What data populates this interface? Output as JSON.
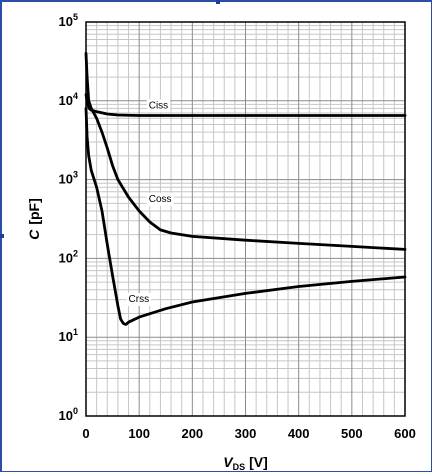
{
  "chart_data": {
    "type": "line",
    "xlabel_main": "V",
    "xlabel_sub": "DS",
    "xlabel_unit": "[V]",
    "ylabel_main": "C",
    "ylabel_unit": "[pF]",
    "x_scale": "linear",
    "y_scale": "log",
    "xlim": [
      0,
      600
    ],
    "ylim": [
      1,
      100000
    ],
    "grid": true,
    "x_ticks": [
      {
        "value": 0,
        "label": "0"
      },
      {
        "value": 100,
        "label": "100"
      },
      {
        "value": 200,
        "label": "200"
      },
      {
        "value": 300,
        "label": "300"
      },
      {
        "value": 400,
        "label": "400"
      },
      {
        "value": 500,
        "label": "500"
      },
      {
        "value": 600,
        "label": "600"
      }
    ],
    "y_ticks": [
      {
        "value": 1,
        "base": "10",
        "exp": "0"
      },
      {
        "value": 10,
        "base": "10",
        "exp": "1"
      },
      {
        "value": 100,
        "base": "10",
        "exp": "2"
      },
      {
        "value": 1000,
        "base": "10",
        "exp": "3"
      },
      {
        "value": 10000,
        "base": "10",
        "exp": "4"
      },
      {
        "value": 100000,
        "base": "10",
        "exp": "5"
      }
    ],
    "series": [
      {
        "name": "Ciss",
        "label_at": [
          118,
          8000
        ],
        "points": [
          [
            0,
            12000
          ],
          [
            3,
            9000
          ],
          [
            6,
            8000
          ],
          [
            10,
            7600
          ],
          [
            20,
            7300
          ],
          [
            40,
            6800
          ],
          [
            60,
            6600
          ],
          [
            100,
            6500
          ],
          [
            200,
            6500
          ],
          [
            300,
            6500
          ],
          [
            400,
            6500
          ],
          [
            500,
            6500
          ],
          [
            600,
            6500
          ]
        ]
      },
      {
        "name": "Coss",
        "label_at": [
          118,
          520
        ],
        "points": [
          [
            0,
            40000
          ],
          [
            2,
            20000
          ],
          [
            5,
            10000
          ],
          [
            10,
            8000
          ],
          [
            20,
            6000
          ],
          [
            30,
            4000
          ],
          [
            40,
            2500
          ],
          [
            50,
            1500
          ],
          [
            60,
            1000
          ],
          [
            80,
            600
          ],
          [
            100,
            400
          ],
          [
            120,
            290
          ],
          [
            140,
            230
          ],
          [
            160,
            210
          ],
          [
            200,
            190
          ],
          [
            300,
            170
          ],
          [
            400,
            155
          ],
          [
            500,
            142
          ],
          [
            600,
            130
          ]
        ]
      },
      {
        "name": "Crss",
        "label_at": [
          80,
          28
        ],
        "points": [
          [
            0,
            8000
          ],
          [
            2,
            3500
          ],
          [
            5,
            2000
          ],
          [
            10,
            1300
          ],
          [
            20,
            800
          ],
          [
            30,
            400
          ],
          [
            40,
            150
          ],
          [
            50,
            60
          ],
          [
            60,
            25
          ],
          [
            65,
            17
          ],
          [
            70,
            15
          ],
          [
            75,
            14.5
          ],
          [
            80,
            15.5
          ],
          [
            100,
            18
          ],
          [
            150,
            23
          ],
          [
            200,
            28
          ],
          [
            300,
            36
          ],
          [
            400,
            44
          ],
          [
            500,
            51
          ],
          [
            600,
            58
          ]
        ]
      }
    ]
  }
}
